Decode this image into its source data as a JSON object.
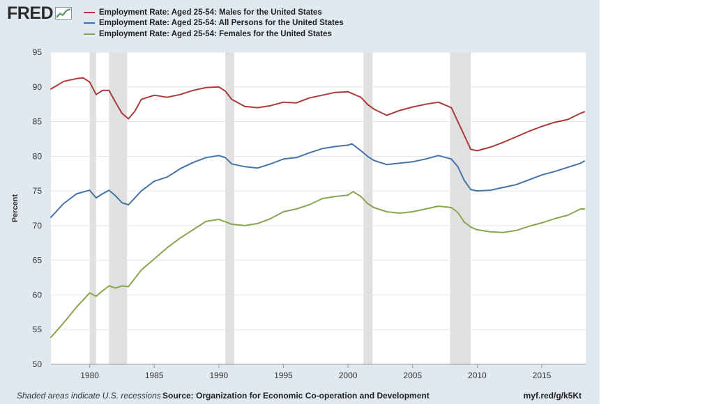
{
  "brand": {
    "logo_text": "FRED",
    "logo_icon": "fred-chart-icon"
  },
  "colors": {
    "background": "#e1e9f0",
    "plot_background": "#ffffff",
    "recession": "#e0e0e0",
    "males": "#aa3939",
    "all_persons": "#4572a7",
    "females": "#89a54e"
  },
  "footer": {
    "note": "Shaded areas indicate U.S. recessions",
    "source": "Source: Organization for Economic Co-operation and Development",
    "url": "myf.red/g/k5Kt"
  },
  "chart_data": {
    "type": "line",
    "title": "",
    "xlabel": "",
    "ylabel": "Percent",
    "xlim": [
      1977.0,
      2018.4
    ],
    "ylim": [
      50,
      95
    ],
    "x_ticks": [
      1980,
      1985,
      1990,
      1995,
      2000,
      2005,
      2010,
      2015
    ],
    "x_tick_labels": [
      "1980",
      "1985",
      "1990",
      "1995",
      "2000",
      "2005",
      "2010",
      "2015"
    ],
    "y_ticks": [
      50,
      55,
      60,
      65,
      70,
      75,
      80,
      85,
      90,
      95
    ],
    "y_tick_labels": [
      "50",
      "55",
      "60",
      "65",
      "70",
      "75",
      "80",
      "85",
      "90",
      "95"
    ],
    "grid": true,
    "recessions": [
      [
        1980.0,
        1980.5
      ],
      [
        1981.5,
        1982.9
      ],
      [
        1990.5,
        1991.2
      ],
      [
        2001.2,
        2001.9
      ],
      [
        2007.9,
        2009.5
      ]
    ],
    "series": [
      {
        "name": "Employment Rate: Aged 25-54: Males for the United States",
        "color_key": "males",
        "x": [
          1977.0,
          1978.0,
          1979.0,
          1979.5,
          1980.0,
          1980.5,
          1981.0,
          1981.5,
          1982.0,
          1982.5,
          1983.0,
          1983.5,
          1984.0,
          1985.0,
          1986.0,
          1987.0,
          1988.0,
          1989.0,
          1990.0,
          1990.5,
          1991.0,
          1992.0,
          1993.0,
          1994.0,
          1995.0,
          1996.0,
          1997.0,
          1998.0,
          1999.0,
          2000.0,
          2001.0,
          2001.5,
          2002.0,
          2003.0,
          2004.0,
          2005.0,
          2006.0,
          2007.0,
          2008.0,
          2008.5,
          2009.0,
          2009.5,
          2010.0,
          2011.0,
          2012.0,
          2013.0,
          2014.0,
          2015.0,
          2016.0,
          2017.0,
          2018.0,
          2018.3
        ],
        "values": [
          89.7,
          90.8,
          91.2,
          91.3,
          90.7,
          88.9,
          89.5,
          89.5,
          87.8,
          86.2,
          85.4,
          86.5,
          88.2,
          88.8,
          88.5,
          88.9,
          89.5,
          89.9,
          90.0,
          89.4,
          88.2,
          87.2,
          87.0,
          87.3,
          87.8,
          87.7,
          88.4,
          88.8,
          89.2,
          89.3,
          88.5,
          87.5,
          86.8,
          85.9,
          86.6,
          87.1,
          87.5,
          87.8,
          87.0,
          85.0,
          83.0,
          81.0,
          80.8,
          81.3,
          82.0,
          82.8,
          83.6,
          84.3,
          84.9,
          85.3,
          86.2,
          86.4
        ]
      },
      {
        "name": "Employment Rate: Aged 25-54: All Persons for the United States",
        "color_key": "all_persons",
        "x": [
          1977.0,
          1978.0,
          1979.0,
          1980.0,
          1980.5,
          1981.0,
          1981.5,
          1982.0,
          1982.5,
          1983.0,
          1984.0,
          1985.0,
          1986.0,
          1987.0,
          1988.0,
          1989.0,
          1990.0,
          1990.5,
          1991.0,
          1992.0,
          1993.0,
          1994.0,
          1995.0,
          1996.0,
          1997.0,
          1998.0,
          1999.0,
          2000.0,
          2000.3,
          2001.0,
          2001.5,
          2002.0,
          2003.0,
          2004.0,
          2005.0,
          2006.0,
          2007.0,
          2008.0,
          2008.5,
          2009.0,
          2009.5,
          2010.0,
          2011.0,
          2012.0,
          2013.0,
          2014.0,
          2015.0,
          2016.0,
          2017.0,
          2018.0,
          2018.3
        ],
        "values": [
          71.2,
          73.2,
          74.6,
          75.1,
          74.0,
          74.6,
          75.1,
          74.3,
          73.3,
          73.0,
          75.0,
          76.4,
          77.0,
          78.2,
          79.1,
          79.8,
          80.1,
          79.8,
          78.9,
          78.5,
          78.3,
          78.9,
          79.6,
          79.8,
          80.5,
          81.1,
          81.4,
          81.6,
          81.8,
          80.8,
          80.0,
          79.4,
          78.8,
          79.0,
          79.2,
          79.6,
          80.1,
          79.6,
          78.5,
          76.5,
          75.2,
          75.0,
          75.1,
          75.5,
          75.9,
          76.6,
          77.3,
          77.8,
          78.4,
          79.0,
          79.3
        ]
      },
      {
        "name": "Employment Rate: Aged 25-54: Females for the United States",
        "color_key": "females",
        "x": [
          1977.0,
          1978.0,
          1979.0,
          1980.0,
          1980.5,
          1981.0,
          1981.5,
          1982.0,
          1982.5,
          1983.0,
          1984.0,
          1985.0,
          1986.0,
          1987.0,
          1988.0,
          1989.0,
          1990.0,
          1991.0,
          1992.0,
          1993.0,
          1994.0,
          1995.0,
          1996.0,
          1997.0,
          1998.0,
          1999.0,
          2000.0,
          2000.4,
          2001.0,
          2001.5,
          2002.0,
          2003.0,
          2004.0,
          2005.0,
          2006.0,
          2007.0,
          2008.0,
          2008.5,
          2009.0,
          2009.5,
          2010.0,
          2011.0,
          2012.0,
          2013.0,
          2014.0,
          2015.0,
          2016.0,
          2017.0,
          2018.0,
          2018.3
        ],
        "values": [
          53.9,
          56.0,
          58.3,
          60.3,
          59.8,
          60.6,
          61.3,
          61.0,
          61.3,
          61.2,
          63.6,
          65.2,
          66.8,
          68.2,
          69.4,
          70.6,
          70.9,
          70.2,
          70.0,
          70.3,
          71.0,
          72.0,
          72.4,
          73.0,
          73.9,
          74.2,
          74.4,
          74.9,
          74.2,
          73.2,
          72.6,
          72.0,
          71.8,
          72.0,
          72.4,
          72.8,
          72.6,
          71.9,
          70.5,
          69.8,
          69.4,
          69.1,
          69.0,
          69.3,
          69.9,
          70.4,
          71.0,
          71.5,
          72.4,
          72.4
        ]
      }
    ]
  }
}
